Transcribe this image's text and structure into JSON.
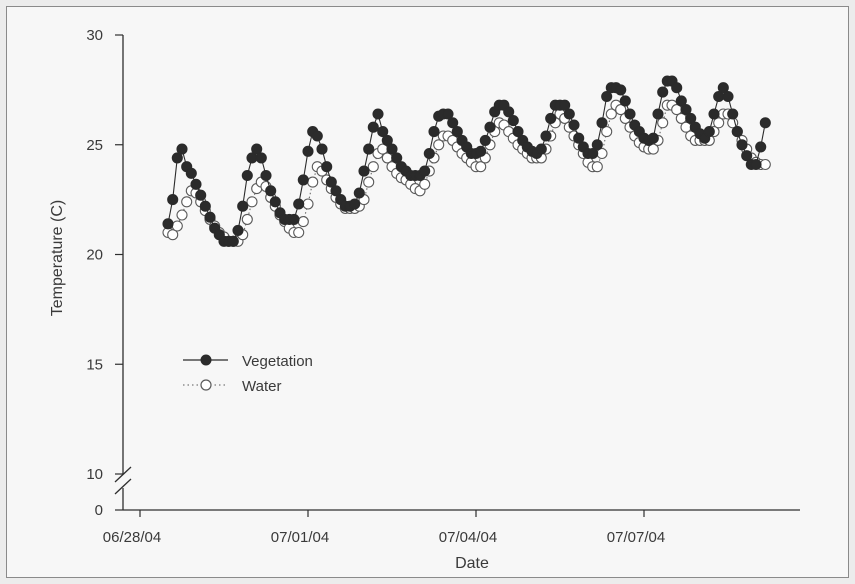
{
  "chart_data": {
    "type": "line",
    "xlabel": "Date",
    "ylabel": "Temperature (C)",
    "x_ticks": [
      "06/28/04",
      "07/01/04",
      "07/04/04",
      "07/07/04"
    ],
    "y_ticks": [
      "30",
      "25",
      "20",
      "15",
      "10",
      "0"
    ],
    "ylim": [
      10,
      30
    ],
    "axis_break": true,
    "grid": false,
    "legend_position": "middle-left",
    "series": [
      {
        "name": "Vegetation",
        "marker": "filled-circle",
        "line": "solid",
        "color": "#2b2b2b",
        "points": [
          [
            "2004-06-28T12:00",
            21.4
          ],
          [
            "2004-06-28T14:00",
            22.5
          ],
          [
            "2004-06-28T16:00",
            24.4
          ],
          [
            "2004-06-28T18:00",
            24.8
          ],
          [
            "2004-06-28T20:00",
            24.0
          ],
          [
            "2004-06-28T22:00",
            23.7
          ],
          [
            "2004-06-29T00:00",
            23.2
          ],
          [
            "2004-06-29T02:00",
            22.7
          ],
          [
            "2004-06-29T04:00",
            22.2
          ],
          [
            "2004-06-29T06:00",
            21.7
          ],
          [
            "2004-06-29T08:00",
            21.2
          ],
          [
            "2004-06-29T10:00",
            20.9
          ],
          [
            "2004-06-29T12:00",
            20.6
          ],
          [
            "2004-06-29T14:00",
            20.6
          ],
          [
            "2004-06-29T16:00",
            20.6
          ],
          [
            "2004-06-29T18:00",
            21.1
          ],
          [
            "2004-06-29T20:00",
            22.2
          ],
          [
            "2004-06-29T22:00",
            23.6
          ],
          [
            "2004-06-30T00:00",
            24.4
          ],
          [
            "2004-06-30T02:00",
            24.8
          ],
          [
            "2004-06-30T04:00",
            24.4
          ],
          [
            "2004-06-30T06:00",
            23.6
          ],
          [
            "2004-06-30T08:00",
            22.9
          ],
          [
            "2004-06-30T10:00",
            22.4
          ],
          [
            "2004-06-30T12:00",
            21.9
          ],
          [
            "2004-06-30T14:00",
            21.6
          ],
          [
            "2004-06-30T16:00",
            21.6
          ],
          [
            "2004-06-30T18:00",
            21.6
          ],
          [
            "2004-06-30T20:00",
            22.3
          ],
          [
            "2004-06-30T22:00",
            23.4
          ],
          [
            "2004-07-01T00:00",
            24.7
          ],
          [
            "2004-07-01T02:00",
            25.6
          ],
          [
            "2004-07-01T04:00",
            25.4
          ],
          [
            "2004-07-01T06:00",
            24.8
          ],
          [
            "2004-07-01T08:00",
            24.0
          ],
          [
            "2004-07-01T10:00",
            23.3
          ],
          [
            "2004-07-01T12:00",
            22.9
          ],
          [
            "2004-07-01T14:00",
            22.5
          ],
          [
            "2004-07-01T16:00",
            22.2
          ],
          [
            "2004-07-01T18:00",
            22.2
          ],
          [
            "2004-07-01T20:00",
            22.3
          ],
          [
            "2004-07-01T22:00",
            22.8
          ],
          [
            "2004-07-02T00:00",
            23.8
          ],
          [
            "2004-07-02T02:00",
            24.8
          ],
          [
            "2004-07-02T04:00",
            25.8
          ],
          [
            "2004-07-02T06:00",
            26.4
          ],
          [
            "2004-07-02T08:00",
            25.6
          ],
          [
            "2004-07-02T10:00",
            25.2
          ],
          [
            "2004-07-02T12:00",
            24.8
          ],
          [
            "2004-07-02T14:00",
            24.4
          ],
          [
            "2004-07-02T16:00",
            24.0
          ],
          [
            "2004-07-02T18:00",
            23.8
          ],
          [
            "2004-07-02T20:00",
            23.6
          ],
          [
            "2004-07-02T22:00",
            23.6
          ],
          [
            "2004-07-03T00:00",
            23.6
          ],
          [
            "2004-07-03T02:00",
            23.8
          ],
          [
            "2004-07-03T04:00",
            24.6
          ],
          [
            "2004-07-03T06:00",
            25.6
          ],
          [
            "2004-07-03T08:00",
            26.3
          ],
          [
            "2004-07-03T10:00",
            26.4
          ],
          [
            "2004-07-03T12:00",
            26.4
          ],
          [
            "2004-07-03T14:00",
            26.0
          ],
          [
            "2004-07-03T16:00",
            25.6
          ],
          [
            "2004-07-03T18:00",
            25.2
          ],
          [
            "2004-07-03T20:00",
            24.9
          ],
          [
            "2004-07-03T22:00",
            24.6
          ],
          [
            "2004-07-04T00:00",
            24.6
          ],
          [
            "2004-07-04T02:00",
            24.7
          ],
          [
            "2004-07-04T04:00",
            25.2
          ],
          [
            "2004-07-04T06:00",
            25.8
          ],
          [
            "2004-07-04T08:00",
            26.5
          ],
          [
            "2004-07-04T10:00",
            26.8
          ],
          [
            "2004-07-04T12:00",
            26.8
          ],
          [
            "2004-07-04T14:00",
            26.5
          ],
          [
            "2004-07-04T16:00",
            26.1
          ],
          [
            "2004-07-04T18:00",
            25.6
          ],
          [
            "2004-07-04T20:00",
            25.2
          ],
          [
            "2004-07-04T22:00",
            24.9
          ],
          [
            "2004-07-05T00:00",
            24.7
          ],
          [
            "2004-07-05T02:00",
            24.6
          ],
          [
            "2004-07-05T04:00",
            24.8
          ],
          [
            "2004-07-05T06:00",
            25.4
          ],
          [
            "2004-07-05T08:00",
            26.2
          ],
          [
            "2004-07-05T10:00",
            26.8
          ],
          [
            "2004-07-05T12:00",
            26.8
          ],
          [
            "2004-07-05T14:00",
            26.8
          ],
          [
            "2004-07-05T16:00",
            26.4
          ],
          [
            "2004-07-05T18:00",
            25.9
          ],
          [
            "2004-07-05T20:00",
            25.3
          ],
          [
            "2004-07-05T22:00",
            24.9
          ],
          [
            "2004-07-06T00:00",
            24.6
          ],
          [
            "2004-07-06T02:00",
            24.6
          ],
          [
            "2004-07-06T04:00",
            25.0
          ],
          [
            "2004-07-06T06:00",
            26.0
          ],
          [
            "2004-07-06T08:00",
            27.2
          ],
          [
            "2004-07-06T10:00",
            27.6
          ],
          [
            "2004-07-06T12:00",
            27.6
          ],
          [
            "2004-07-06T14:00",
            27.5
          ],
          [
            "2004-07-06T16:00",
            27.0
          ],
          [
            "2004-07-06T18:00",
            26.4
          ],
          [
            "2004-07-06T20:00",
            25.9
          ],
          [
            "2004-07-06T22:00",
            25.6
          ],
          [
            "2004-07-07T00:00",
            25.3
          ],
          [
            "2004-07-07T02:00",
            25.2
          ],
          [
            "2004-07-07T04:00",
            25.3
          ],
          [
            "2004-07-07T06:00",
            26.4
          ],
          [
            "2004-07-07T08:00",
            27.4
          ],
          [
            "2004-07-07T10:00",
            27.9
          ],
          [
            "2004-07-07T12:00",
            27.9
          ],
          [
            "2004-07-07T14:00",
            27.6
          ],
          [
            "2004-07-07T16:00",
            27.0
          ],
          [
            "2004-07-07T18:00",
            26.6
          ],
          [
            "2004-07-07T20:00",
            26.2
          ],
          [
            "2004-07-07T22:00",
            25.8
          ],
          [
            "2004-07-08T00:00",
            25.5
          ],
          [
            "2004-07-08T02:00",
            25.3
          ],
          [
            "2004-07-08T04:00",
            25.6
          ],
          [
            "2004-07-08T06:00",
            26.4
          ],
          [
            "2004-07-08T08:00",
            27.2
          ],
          [
            "2004-07-08T10:00",
            27.6
          ],
          [
            "2004-07-08T12:00",
            27.2
          ],
          [
            "2004-07-08T14:00",
            26.4
          ],
          [
            "2004-07-08T16:00",
            25.6
          ],
          [
            "2004-07-08T18:00",
            25.0
          ],
          [
            "2004-07-08T20:00",
            24.5
          ],
          [
            "2004-07-08T22:00",
            24.1
          ],
          [
            "2004-07-09T00:00",
            24.1
          ],
          [
            "2004-07-09T02:00",
            24.9
          ],
          [
            "2004-07-09T04:00",
            26.0
          ]
        ]
      },
      {
        "name": "Water",
        "marker": "open-circle",
        "line": "dotted",
        "color": "#6a6a6a",
        "points": [
          [
            "2004-06-28T12:00",
            21.0
          ],
          [
            "2004-06-28T14:00",
            20.9
          ],
          [
            "2004-06-28T16:00",
            21.3
          ],
          [
            "2004-06-28T18:00",
            21.8
          ],
          [
            "2004-06-28T20:00",
            22.4
          ],
          [
            "2004-06-28T22:00",
            22.9
          ],
          [
            "2004-06-29T00:00",
            22.8
          ],
          [
            "2004-06-29T02:00",
            22.4
          ],
          [
            "2004-06-29T04:00",
            22.0
          ],
          [
            "2004-06-29T06:00",
            21.6
          ],
          [
            "2004-06-29T08:00",
            21.3
          ],
          [
            "2004-06-29T10:00",
            21.0
          ],
          [
            "2004-06-29T12:00",
            20.8
          ],
          [
            "2004-06-29T14:00",
            20.6
          ],
          [
            "2004-06-29T16:00",
            20.6
          ],
          [
            "2004-06-29T18:00",
            20.6
          ],
          [
            "2004-06-29T20:00",
            20.9
          ],
          [
            "2004-06-29T22:00",
            21.6
          ],
          [
            "2004-06-30T00:00",
            22.4
          ],
          [
            "2004-06-30T02:00",
            23.0
          ],
          [
            "2004-06-30T04:00",
            23.3
          ],
          [
            "2004-06-30T06:00",
            23.1
          ],
          [
            "2004-06-30T08:00",
            22.6
          ],
          [
            "2004-06-30T10:00",
            22.2
          ],
          [
            "2004-06-30T12:00",
            21.8
          ],
          [
            "2004-06-30T14:00",
            21.5
          ],
          [
            "2004-06-30T16:00",
            21.2
          ],
          [
            "2004-06-30T18:00",
            21.0
          ],
          [
            "2004-06-30T20:00",
            21.0
          ],
          [
            "2004-06-30T22:00",
            21.5
          ],
          [
            "2004-07-01T00:00",
            22.3
          ],
          [
            "2004-07-01T02:00",
            23.3
          ],
          [
            "2004-07-01T04:00",
            24.0
          ],
          [
            "2004-07-01T06:00",
            23.8
          ],
          [
            "2004-07-01T08:00",
            23.4
          ],
          [
            "2004-07-01T10:00",
            23.0
          ],
          [
            "2004-07-01T12:00",
            22.6
          ],
          [
            "2004-07-01T14:00",
            22.3
          ],
          [
            "2004-07-01T16:00",
            22.1
          ],
          [
            "2004-07-01T18:00",
            22.1
          ],
          [
            "2004-07-01T20:00",
            22.1
          ],
          [
            "2004-07-01T22:00",
            22.2
          ],
          [
            "2004-07-02T00:00",
            22.5
          ],
          [
            "2004-07-02T02:00",
            23.3
          ],
          [
            "2004-07-02T04:00",
            24.0
          ],
          [
            "2004-07-02T06:00",
            24.6
          ],
          [
            "2004-07-02T08:00",
            24.8
          ],
          [
            "2004-07-02T10:00",
            24.4
          ],
          [
            "2004-07-02T12:00",
            24.0
          ],
          [
            "2004-07-02T14:00",
            23.7
          ],
          [
            "2004-07-02T16:00",
            23.5
          ],
          [
            "2004-07-02T18:00",
            23.4
          ],
          [
            "2004-07-02T20:00",
            23.2
          ],
          [
            "2004-07-02T22:00",
            23.0
          ],
          [
            "2004-07-03T00:00",
            22.9
          ],
          [
            "2004-07-03T02:00",
            23.2
          ],
          [
            "2004-07-03T04:00",
            23.8
          ],
          [
            "2004-07-03T06:00",
            24.4
          ],
          [
            "2004-07-03T08:00",
            25.0
          ],
          [
            "2004-07-03T10:00",
            25.4
          ],
          [
            "2004-07-03T12:00",
            25.4
          ],
          [
            "2004-07-03T14:00",
            25.2
          ],
          [
            "2004-07-03T16:00",
            24.9
          ],
          [
            "2004-07-03T18:00",
            24.6
          ],
          [
            "2004-07-03T20:00",
            24.4
          ],
          [
            "2004-07-03T22:00",
            24.2
          ],
          [
            "2004-07-04T00:00",
            24.0
          ],
          [
            "2004-07-04T02:00",
            24.0
          ],
          [
            "2004-07-04T04:00",
            24.4
          ],
          [
            "2004-07-04T06:00",
            25.0
          ],
          [
            "2004-07-04T08:00",
            25.6
          ],
          [
            "2004-07-04T10:00",
            26.0
          ],
          [
            "2004-07-04T12:00",
            25.9
          ],
          [
            "2004-07-04T14:00",
            25.6
          ],
          [
            "2004-07-04T16:00",
            25.3
          ],
          [
            "2004-07-04T18:00",
            25.0
          ],
          [
            "2004-07-04T20:00",
            24.8
          ],
          [
            "2004-07-04T22:00",
            24.6
          ],
          [
            "2004-07-05T00:00",
            24.4
          ],
          [
            "2004-07-05T02:00",
            24.4
          ],
          [
            "2004-07-05T04:00",
            24.4
          ],
          [
            "2004-07-05T06:00",
            24.8
          ],
          [
            "2004-07-05T08:00",
            25.4
          ],
          [
            "2004-07-05T10:00",
            26.0
          ],
          [
            "2004-07-05T12:00",
            26.4
          ],
          [
            "2004-07-05T14:00",
            26.2
          ],
          [
            "2004-07-05T16:00",
            25.8
          ],
          [
            "2004-07-05T18:00",
            25.4
          ],
          [
            "2004-07-05T20:00",
            25.0
          ],
          [
            "2004-07-05T22:00",
            24.6
          ],
          [
            "2004-07-06T00:00",
            24.2
          ],
          [
            "2004-07-06T02:00",
            24.0
          ],
          [
            "2004-07-06T04:00",
            24.0
          ],
          [
            "2004-07-06T06:00",
            24.6
          ],
          [
            "2004-07-06T08:00",
            25.6
          ],
          [
            "2004-07-06T10:00",
            26.4
          ],
          [
            "2004-07-06T12:00",
            26.8
          ],
          [
            "2004-07-06T14:00",
            26.6
          ],
          [
            "2004-07-06T16:00",
            26.2
          ],
          [
            "2004-07-06T18:00",
            25.8
          ],
          [
            "2004-07-06T20:00",
            25.4
          ],
          [
            "2004-07-06T22:00",
            25.1
          ],
          [
            "2004-07-07T00:00",
            24.9
          ],
          [
            "2004-07-07T02:00",
            24.8
          ],
          [
            "2004-07-07T04:00",
            24.8
          ],
          [
            "2004-07-07T06:00",
            25.2
          ],
          [
            "2004-07-07T08:00",
            26.0
          ],
          [
            "2004-07-07T10:00",
            26.8
          ],
          [
            "2004-07-07T12:00",
            26.8
          ],
          [
            "2004-07-07T14:00",
            26.6
          ],
          [
            "2004-07-07T16:00",
            26.2
          ],
          [
            "2004-07-07T18:00",
            25.8
          ],
          [
            "2004-07-07T20:00",
            25.4
          ],
          [
            "2004-07-07T22:00",
            25.2
          ],
          [
            "2004-07-08T00:00",
            25.2
          ],
          [
            "2004-07-08T02:00",
            25.2
          ],
          [
            "2004-07-08T04:00",
            25.2
          ],
          [
            "2004-07-08T06:00",
            25.6
          ],
          [
            "2004-07-08T08:00",
            26.0
          ],
          [
            "2004-07-08T10:00",
            26.4
          ],
          [
            "2004-07-08T12:00",
            26.4
          ],
          [
            "2004-07-08T14:00",
            26.0
          ],
          [
            "2004-07-08T16:00",
            25.6
          ],
          [
            "2004-07-08T18:00",
            25.2
          ],
          [
            "2004-07-08T20:00",
            24.8
          ],
          [
            "2004-07-08T22:00",
            24.4
          ],
          [
            "2004-07-09T00:00",
            24.2
          ],
          [
            "2004-07-09T02:00",
            24.1
          ],
          [
            "2004-07-09T04:00",
            24.1
          ]
        ]
      }
    ]
  }
}
